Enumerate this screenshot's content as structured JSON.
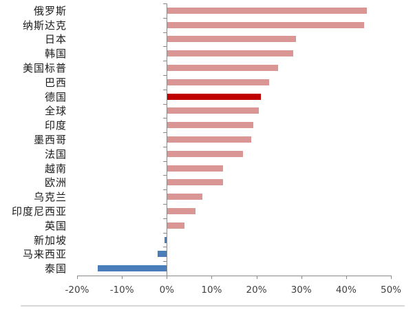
{
  "chart_data": {
    "type": "bar",
    "orientation": "horizontal",
    "title": "",
    "xlabel": "",
    "ylabel": "",
    "xlim": [
      -20,
      50
    ],
    "grid": false,
    "legend": false,
    "categories": [
      "俄罗斯",
      "纳斯达克",
      "日本",
      "韩国",
      "美国标普",
      "巴西",
      "德国",
      "全球",
      "印度",
      "墨西哥",
      "法国",
      "越南",
      "欧洲",
      "乌克兰",
      "印度尼西亚",
      "英国",
      "新加坡",
      "马来西亚",
      "泰国"
    ],
    "values": [
      44.5,
      43.8,
      28.6,
      28.0,
      24.6,
      22.6,
      20.8,
      20.3,
      19.1,
      18.7,
      16.9,
      12.4,
      12.4,
      7.8,
      6.3,
      3.8,
      -0.5,
      -2.0,
      -15.4
    ],
    "bar_colors": [
      "#d99694",
      "#d99694",
      "#d99694",
      "#d99694",
      "#d99694",
      "#d99694",
      "#c00000",
      "#d99694",
      "#d99694",
      "#d99694",
      "#d99694",
      "#d99694",
      "#d99694",
      "#d99694",
      "#d99694",
      "#d99694",
      "#4a7ebb",
      "#4a7ebb",
      "#4a7ebb"
    ],
    "x_ticks": [
      -20,
      -10,
      0,
      10,
      20,
      30,
      40,
      50
    ],
    "x_tick_labels": [
      "-20%",
      "-10%",
      "0%",
      "10%",
      "20%",
      "30%",
      "40%",
      "50%"
    ],
    "colors": {
      "positive_default": "#d99694",
      "emphasis": "#c00000",
      "negative": "#4a7ebb",
      "axis": "#898989",
      "tick_label": "#404040",
      "category_label": "#1a1a1a",
      "divider": "#d9d9d9"
    }
  }
}
